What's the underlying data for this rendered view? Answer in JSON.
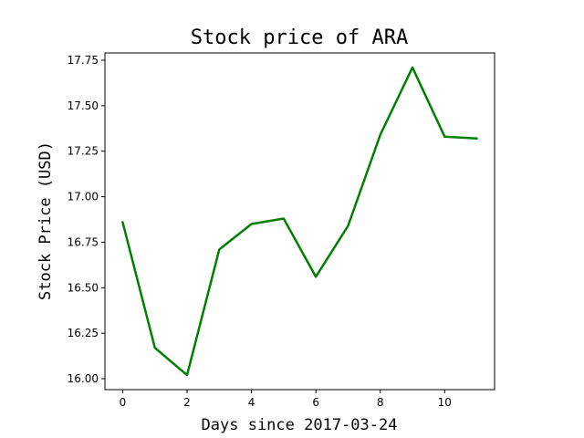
{
  "chart_data": {
    "type": "line",
    "title": "Stock price of ARA",
    "xlabel": "Days since 2017-03-24",
    "ylabel": "Stock Price (USD)",
    "x": [
      0,
      1,
      2,
      3,
      4,
      5,
      6,
      7,
      8,
      9,
      10,
      11
    ],
    "series": [
      {
        "name": "",
        "color": "#008000",
        "values": [
          16.86,
          16.17,
          16.02,
          16.71,
          16.85,
          16.88,
          16.56,
          16.84,
          17.34,
          17.71,
          17.33,
          17.32
        ]
      }
    ],
    "xlim": [
      -0.55,
      11.55
    ],
    "ylim": [
      15.94,
      17.79
    ],
    "xticks": [
      0,
      2,
      4,
      6,
      8,
      10
    ],
    "xtick_labels": [
      "0",
      "2",
      "4",
      "6",
      "8",
      "10"
    ],
    "yticks": [
      16.0,
      16.25,
      16.5,
      16.75,
      17.0,
      17.25,
      17.5,
      17.75
    ],
    "ytick_labels": [
      "16.00",
      "16.25",
      "16.50",
      "16.75",
      "17.00",
      "17.25",
      "17.50",
      "17.75"
    ],
    "grid": false,
    "legend": "none"
  }
}
